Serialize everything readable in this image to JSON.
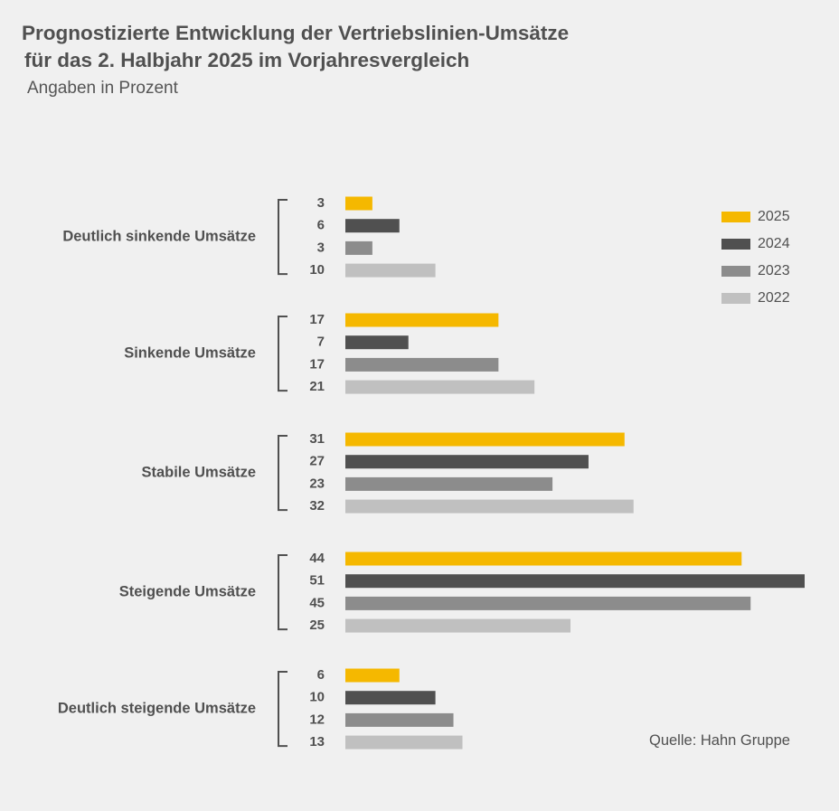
{
  "header": {
    "title_line1": "Prognostizierte Entwicklung der Vertriebslinien-Umsätze",
    "title_line2": "für das 2. Halbjahr 2025 im Vorjahresvergleich",
    "subtitle": "Angaben in Prozent"
  },
  "source": "Quelle: Hahn Gruppe",
  "chart_data": {
    "type": "bar",
    "orientation": "horizontal",
    "title": "Prognostizierte Entwicklung der Vertriebslinien-Umsätze für das 2. Halbjahr 2025 im Vorjahresvergleich",
    "subtitle": "Angaben in Prozent",
    "categories": [
      "Deutlich sinkende Umsätze",
      "Sinkende Umsätze",
      "Stabile Umsätze",
      "Steigende Umsätze",
      "Deutlich steigende Umsätze"
    ],
    "series": [
      {
        "name": "2025",
        "color": "#f5b800",
        "values": [
          3,
          17,
          31,
          44,
          6
        ]
      },
      {
        "name": "2024",
        "color": "#505050",
        "values": [
          6,
          7,
          27,
          51,
          10
        ]
      },
      {
        "name": "2023",
        "color": "#8c8c8c",
        "values": [
          3,
          17,
          23,
          45,
          12
        ]
      },
      {
        "name": "2022",
        "color": "#c0c0c0",
        "values": [
          10,
          21,
          32,
          25,
          13
        ]
      }
    ],
    "xlim": [
      0,
      51
    ],
    "grid": false,
    "legend_position": "top-right"
  }
}
